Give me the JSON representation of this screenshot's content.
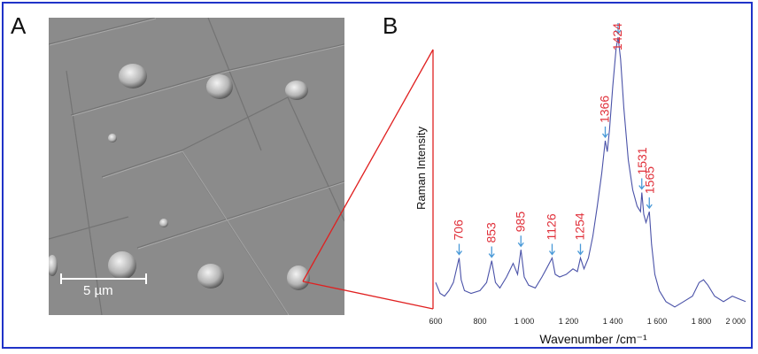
{
  "panel_a": {
    "label": "A",
    "scale_bar": "5 µm"
  },
  "panel_b": {
    "label": "B"
  },
  "chart_data": {
    "type": "line",
    "title": "",
    "xlabel": "Wavenumber /cm⁻¹",
    "ylabel": "Raman Intensity",
    "xlim": [
      600,
      2000
    ],
    "x_ticks": [
      600,
      800,
      1000,
      1200,
      1400,
      1600,
      1800,
      2000
    ],
    "x_tick_labels": [
      "600",
      "800",
      "1 000",
      "1 200",
      "1 400",
      "1 600",
      "1 800",
      "2 000"
    ],
    "series_color": "#4a52a8",
    "annotation_color": "#e0303a",
    "arrow_color": "#4a9ad8",
    "peaks": [
      {
        "x": 706,
        "label": "706"
      },
      {
        "x": 853,
        "label": "853"
      },
      {
        "x": 985,
        "label": "985"
      },
      {
        "x": 1126,
        "label": "1126"
      },
      {
        "x": 1254,
        "label": "1254"
      },
      {
        "x": 1366,
        "label": "1366"
      },
      {
        "x": 1424,
        "label": "1424"
      },
      {
        "x": 1531,
        "label": "1531"
      },
      {
        "x": 1565,
        "label": "1565"
      }
    ],
    "spectrum": {
      "x": [
        600,
        620,
        640,
        660,
        680,
        700,
        706,
        715,
        730,
        760,
        800,
        830,
        853,
        870,
        890,
        920,
        950,
        970,
        985,
        1000,
        1020,
        1050,
        1080,
        1100,
        1126,
        1140,
        1160,
        1190,
        1220,
        1240,
        1254,
        1270,
        1290,
        1310,
        1330,
        1350,
        1366,
        1375,
        1385,
        1400,
        1415,
        1424,
        1435,
        1450,
        1470,
        1490,
        1510,
        1525,
        1531,
        1540,
        1550,
        1565,
        1575,
        1590,
        1610,
        1640,
        1680,
        1720,
        1760,
        1790,
        1810,
        1830,
        1860,
        1900,
        1940,
        1970,
        2000
      ],
      "y": [
        0.1,
        0.06,
        0.05,
        0.07,
        0.1,
        0.17,
        0.19,
        0.11,
        0.07,
        0.06,
        0.07,
        0.1,
        0.18,
        0.1,
        0.08,
        0.12,
        0.17,
        0.13,
        0.22,
        0.12,
        0.09,
        0.08,
        0.12,
        0.15,
        0.19,
        0.13,
        0.12,
        0.13,
        0.15,
        0.14,
        0.19,
        0.15,
        0.19,
        0.27,
        0.38,
        0.5,
        0.62,
        0.58,
        0.66,
        0.82,
        0.96,
        1.0,
        0.92,
        0.74,
        0.55,
        0.44,
        0.38,
        0.36,
        0.43,
        0.35,
        0.32,
        0.36,
        0.24,
        0.13,
        0.07,
        0.03,
        0.01,
        0.03,
        0.05,
        0.1,
        0.11,
        0.09,
        0.05,
        0.03,
        0.05,
        0.04,
        0.03
      ]
    }
  }
}
